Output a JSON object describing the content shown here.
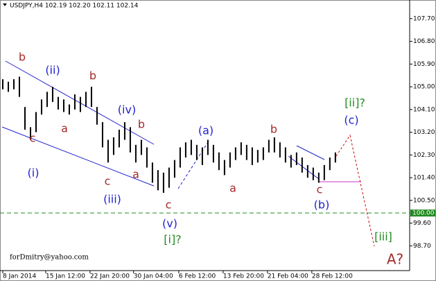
{
  "chart_data": {
    "type": "range-bar",
    "title": "USDJPY,H4  102.19 102.20 102.11 102.14",
    "watermark": "forDmitry@yahoo.com",
    "color": "#000000",
    "x": [
      0,
      1,
      2,
      3,
      4,
      5,
      6,
      7,
      8,
      9,
      10,
      11,
      12,
      13,
      14,
      15,
      16,
      17,
      18,
      19,
      20,
      21,
      22,
      23,
      24,
      25,
      26,
      27,
      28,
      29,
      30,
      31,
      32,
      33,
      34,
      35,
      36,
      37,
      38,
      39,
      40,
      41,
      42,
      43,
      44,
      45,
      46,
      47,
      48,
      49,
      50,
      51,
      52,
      53,
      54,
      55,
      56,
      57,
      58,
      59,
      60
    ],
    "high": [
      105.3,
      105.2,
      105.3,
      105.4,
      104.2,
      103.4,
      104.0,
      104.5,
      104.8,
      105.0,
      104.6,
      104.5,
      104.3,
      104.7,
      104.6,
      104.8,
      105.0,
      104.2,
      103.6,
      102.9,
      103.0,
      103.3,
      103.6,
      103.4,
      102.7,
      102.9,
      102.6,
      102.0,
      101.7,
      101.6,
      101.8,
      102.1,
      102.6,
      102.8,
      102.9,
      102.7,
      102.6,
      102.9,
      102.7,
      102.4,
      102.1,
      102.4,
      102.6,
      102.8,
      102.7,
      102.6,
      102.5,
      102.6,
      102.9,
      103.0,
      102.8,
      102.6,
      102.3,
      102.4,
      102.2,
      101.9,
      101.8,
      101.6,
      101.9,
      102.2,
      102.4
    ],
    "low": [
      104.9,
      104.8,
      104.9,
      104.6,
      103.3,
      102.9,
      103.2,
      103.9,
      104.2,
      104.4,
      104.1,
      104.0,
      103.9,
      104.1,
      104.0,
      104.2,
      104.2,
      103.5,
      102.6,
      102.0,
      102.3,
      102.6,
      102.9,
      102.4,
      102.0,
      102.3,
      101.8,
      101.2,
      100.9,
      100.8,
      101.0,
      101.4,
      101.8,
      102.2,
      102.3,
      102.1,
      101.9,
      102.3,
      102.0,
      101.7,
      101.5,
      101.8,
      102.1,
      102.3,
      102.1,
      101.9,
      102.0,
      102.1,
      102.4,
      102.4,
      102.2,
      102.0,
      101.8,
      101.9,
      101.6,
      101.4,
      101.3,
      101.2,
      101.3,
      101.7,
      102.0
    ],
    "xlim": [
      -0.5,
      73.4
    ],
    "xticks": [
      {
        "value": 0,
        "label": "8 Jan 2014"
      },
      {
        "value": 7.75,
        "label": "15 Jan 12:00"
      },
      {
        "value": 15.75,
        "label": "22 Jan 20:00"
      },
      {
        "value": 23.6,
        "label": "30 Jan 04:00"
      },
      {
        "value": 31.75,
        "label": "6 Feb 12:00"
      },
      {
        "value": 39.75,
        "label": "13 Feb 20:00"
      },
      {
        "value": 47.75,
        "label": "21 Feb 04:00"
      },
      {
        "value": 55.75,
        "label": "28 Feb 12:00"
      }
    ],
    "ylim": [
      97.72,
      108.3
    ],
    "yticks": [
      {
        "value": 107.7,
        "label": "107.70"
      },
      {
        "value": 106.8,
        "label": "106.80"
      },
      {
        "value": 105.9,
        "label": "105.90"
      },
      {
        "value": 105,
        "label": "105.00"
      },
      {
        "value": 104.1,
        "label": "104.10"
      },
      {
        "value": 103.2,
        "label": "103.20"
      },
      {
        "value": 102.3,
        "label": "102.30"
      },
      {
        "value": 101.4,
        "label": "101.40"
      },
      {
        "value": 100.5,
        "label": "100.50"
      },
      {
        "value": 99.6,
        "label": "99.60"
      },
      {
        "value": 98.7,
        "label": "98.70"
      }
    ],
    "hline": {
      "value": 100,
      "label": "100.00",
      "color": "#228b22"
    },
    "annotations": [
      {
        "text": "b",
        "color": "#a52a2a"
      },
      {
        "text": "(ii)",
        "color": "#2222cc"
      },
      {
        "text": "b",
        "color": "#a52a2a"
      },
      {
        "text": "(iv)",
        "color": "#2222cc"
      },
      {
        "text": "b",
        "color": "#a52a2a"
      },
      {
        "text": "a",
        "color": "#a52a2a"
      },
      {
        "text": "c",
        "color": "#a52a2a"
      },
      {
        "text": "(i)",
        "color": "#2222cc"
      },
      {
        "text": "c",
        "color": "#a52a2a"
      },
      {
        "text": "a",
        "color": "#a52a2a"
      },
      {
        "text": "(iii)",
        "color": "#2222cc"
      },
      {
        "text": "c",
        "color": "#a52a2a"
      },
      {
        "text": "(v)",
        "color": "#2222cc"
      },
      {
        "text": "[i]?",
        "color": "#228b22"
      },
      {
        "text": "(a)",
        "color": "#2222cc"
      },
      {
        "text": "a",
        "color": "#a52a2a"
      },
      {
        "text": "b",
        "color": "#a52a2a"
      },
      {
        "text": "c",
        "color": "#a52a2a"
      },
      {
        "text": "(b)",
        "color": "#2222cc"
      },
      {
        "text": "[ii]?",
        "color": "#228b22"
      },
      {
        "text": "(c)",
        "color": "#2222cc"
      },
      {
        "text": "[iii]",
        "color": "#228b22"
      },
      {
        "text": "A?",
        "color": "#a52a2a"
      }
    ]
  }
}
